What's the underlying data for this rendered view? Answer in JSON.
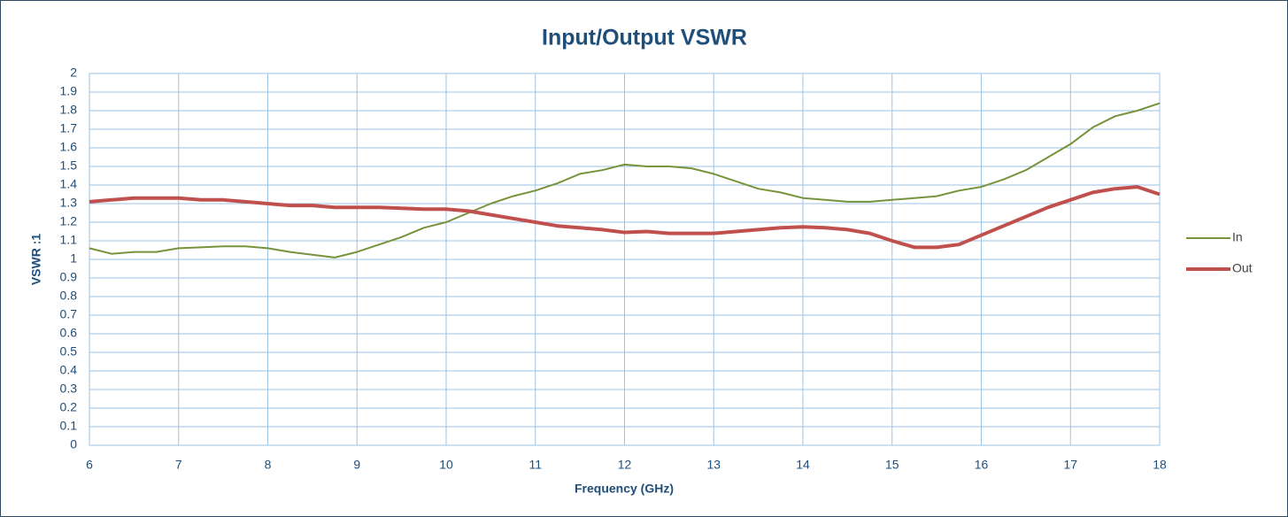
{
  "chart_data": {
    "type": "line",
    "title": "Input/Output VSWR",
    "x_label": "Frequency (GHz)",
    "y_label": "VSWR :1",
    "x": [
      6,
      6.25,
      6.5,
      6.75,
      7,
      7.25,
      7.5,
      7.75,
      8,
      8.25,
      8.5,
      8.75,
      9,
      9.25,
      9.5,
      9.75,
      10,
      10.25,
      10.5,
      10.75,
      11,
      11.25,
      11.5,
      11.75,
      12,
      12.25,
      12.5,
      12.75,
      13,
      13.25,
      13.5,
      13.75,
      14,
      14.25,
      14.5,
      14.75,
      15,
      15.25,
      15.5,
      15.75,
      16,
      16.25,
      16.5,
      16.75,
      17,
      17.25,
      17.5,
      17.75,
      18
    ],
    "series": [
      {
        "name": "In",
        "color": "#77933c",
        "width": 2,
        "values": [
          1.06,
          1.03,
          1.04,
          1.04,
          1.06,
          1.065,
          1.07,
          1.07,
          1.06,
          1.04,
          1.025,
          1.01,
          1.04,
          1.08,
          1.12,
          1.17,
          1.2,
          1.25,
          1.3,
          1.34,
          1.37,
          1.41,
          1.46,
          1.48,
          1.51,
          1.5,
          1.5,
          1.49,
          1.46,
          1.42,
          1.38,
          1.36,
          1.33,
          1.32,
          1.31,
          1.31,
          1.32,
          1.33,
          1.34,
          1.37,
          1.39,
          1.43,
          1.48,
          1.55,
          1.62,
          1.71,
          1.77,
          1.8,
          1.84
        ]
      },
      {
        "name": "Out",
        "color": "#c0504d",
        "width": 4,
        "values": [
          1.31,
          1.32,
          1.33,
          1.33,
          1.33,
          1.32,
          1.32,
          1.31,
          1.3,
          1.29,
          1.29,
          1.28,
          1.28,
          1.28,
          1.275,
          1.27,
          1.27,
          1.26,
          1.24,
          1.22,
          1.2,
          1.18,
          1.17,
          1.16,
          1.145,
          1.15,
          1.14,
          1.14,
          1.14,
          1.15,
          1.16,
          1.17,
          1.175,
          1.17,
          1.16,
          1.14,
          1.1,
          1.065,
          1.065,
          1.08,
          1.13,
          1.18,
          1.23,
          1.28,
          1.32,
          1.36,
          1.38,
          1.39,
          1.35
        ]
      }
    ],
    "xlim": [
      6,
      18
    ],
    "xticks": [
      6,
      7,
      8,
      9,
      10,
      11,
      12,
      13,
      14,
      15,
      16,
      17,
      18
    ],
    "ylim": [
      0,
      2
    ],
    "yticks": [
      0,
      0.1,
      0.2,
      0.3,
      0.4,
      0.5,
      0.6,
      0.7,
      0.8,
      0.9,
      1,
      1.1,
      1.2,
      1.3,
      1.4,
      1.5,
      1.6,
      1.7,
      1.8,
      1.9,
      2
    ],
    "grid": true,
    "legend": "right"
  }
}
